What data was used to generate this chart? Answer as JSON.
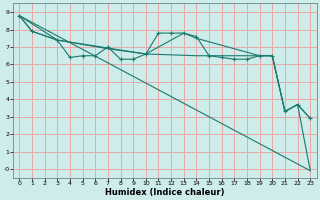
{
  "xlabel": "Humidex (Indice chaleur)",
  "bg_color": "#cdecea",
  "grid_color": "#e8a8a8",
  "line_color": "#1a7a6e",
  "xlim": [
    -0.5,
    23.5
  ],
  "ylim": [
    -0.5,
    9.5
  ],
  "xticks": [
    0,
    1,
    2,
    3,
    4,
    5,
    6,
    7,
    8,
    9,
    10,
    11,
    12,
    13,
    14,
    15,
    16,
    17,
    18,
    19,
    20,
    21,
    22,
    23
  ],
  "yticks": [
    0,
    1,
    2,
    3,
    4,
    5,
    6,
    7,
    8,
    9
  ],
  "ytick_labels": [
    "-0",
    "1",
    "2",
    "3",
    "4",
    "5",
    "6",
    "7",
    "8",
    "9"
  ],
  "lines": [
    {
      "x": [
        0,
        1,
        3,
        4,
        5,
        6,
        7,
        8,
        9,
        10,
        11,
        12,
        13,
        14,
        15,
        16,
        17,
        18,
        19,
        20,
        21,
        22,
        23
      ],
      "y": [
        8.8,
        7.9,
        7.4,
        6.4,
        6.5,
        6.5,
        7.0,
        6.3,
        6.3,
        6.6,
        7.8,
        7.8,
        7.8,
        7.6,
        6.5,
        6.4,
        6.3,
        6.3,
        6.5,
        6.5,
        3.3,
        3.7,
        2.9
      ],
      "marker": true
    },
    {
      "x": [
        0,
        1,
        3,
        10,
        13,
        14,
        19,
        20,
        21,
        22,
        23
      ],
      "y": [
        8.8,
        7.9,
        7.4,
        6.6,
        7.8,
        7.5,
        6.5,
        6.5,
        3.3,
        3.7,
        2.9
      ],
      "marker": false
    },
    {
      "x": [
        0,
        23
      ],
      "y": [
        8.8,
        -0.1
      ],
      "marker": false
    },
    {
      "x": [
        0,
        3,
        7,
        10,
        14,
        19,
        20,
        21,
        22,
        23
      ],
      "y": [
        8.8,
        7.4,
        6.9,
        6.6,
        6.5,
        6.5,
        6.5,
        3.3,
        3.7,
        -0.1
      ],
      "marker": false
    }
  ]
}
